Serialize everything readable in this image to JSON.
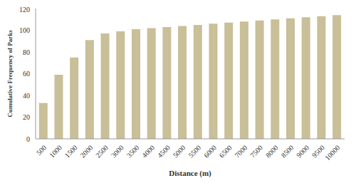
{
  "chart_data": {
    "type": "bar",
    "x_label": "Distance (m)",
    "y_label": "Cumulative Frequency of Parks",
    "categories": [
      "500",
      "1000",
      "1500",
      "2000",
      "2500",
      "3000",
      "3500",
      "4000",
      "4500",
      "5000",
      "5500",
      "6000",
      "6500",
      "7000",
      "7500",
      "8000",
      "8500",
      "9000",
      "9500",
      "10000"
    ],
    "values": [
      33,
      59,
      75,
      91,
      97,
      99,
      101,
      102,
      103,
      104,
      105,
      106,
      107,
      108,
      109,
      110,
      111,
      112,
      113,
      114
    ],
    "color": "#c9bf98",
    "ylim": [
      0,
      120
    ],
    "yticks": [
      0,
      20,
      40,
      60,
      80,
      100,
      120
    ],
    "grid": false
  }
}
